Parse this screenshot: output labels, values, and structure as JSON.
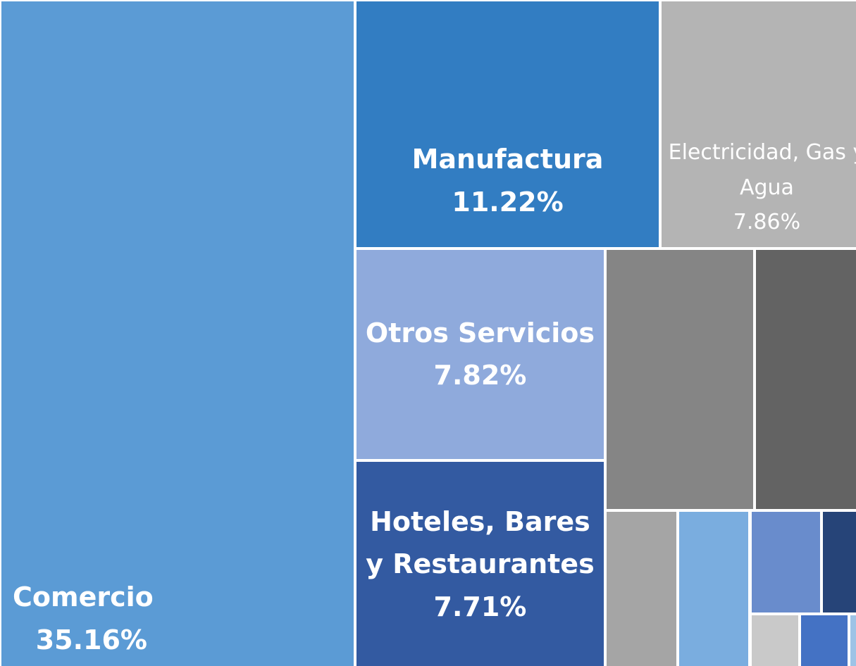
{
  "chart_data": {
    "type": "treemap",
    "categories": [
      "Comercio",
      "Manufactura",
      "Electricidad, Gas y Agua",
      "Otros Servicios",
      "Hoteles, Bares y Restaurantes",
      null,
      null,
      null,
      null,
      null,
      null,
      null,
      null,
      null
    ],
    "values": [
      35.16,
      11.22,
      7.86,
      7.82,
      7.71,
      5.8,
      4.6,
      1.7,
      1.7,
      1.1,
      0.8,
      0.4,
      0.4,
      0.2
    ],
    "value_labels": [
      "35.16%",
      "11.22%",
      "7.86%",
      "7.82%",
      "7.71%",
      null,
      null,
      null,
      null,
      null,
      null,
      null,
      null,
      null
    ],
    "colors": [
      "#5b9bd5",
      "#327dc2",
      "#b4b4b4",
      "#8faadc",
      "#335aa1",
      "#858585",
      "#636363",
      "#a5a5a5",
      "#7aaddf",
      "#698ccc",
      "#264478",
      "#c9c9c9",
      "#4472c4",
      "#9dc3e6"
    ]
  }
}
